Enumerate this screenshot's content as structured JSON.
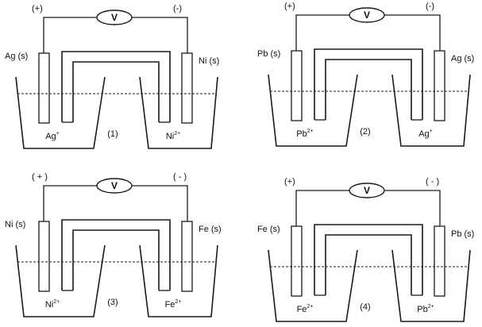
{
  "cells": [
    {
      "number": "(1)",
      "positive": "(+)",
      "negative": "(-)",
      "voltmeter": "V",
      "left_electrode": "Ag (s)",
      "right_electrode": "Ni (s)",
      "left_ion": "Ag",
      "left_ion_charge": "+",
      "right_ion": "Ni",
      "right_ion_charge": "2+"
    },
    {
      "number": "(2)",
      "positive": "(+)",
      "negative": "(-)",
      "voltmeter": "V",
      "left_electrode": "Pb (s)",
      "right_electrode": "Ag (s)",
      "left_ion": "Pb",
      "left_ion_charge": "2+",
      "right_ion": "Ag",
      "right_ion_charge": "+"
    },
    {
      "number": "(3)",
      "positive": "( + )",
      "negative": "( - )",
      "voltmeter": "V",
      "left_electrode": "Ni (s)",
      "right_electrode": "Fe (s)",
      "left_ion": "Ni",
      "left_ion_charge": "2+",
      "right_ion": "Fe",
      "right_ion_charge": "2+"
    },
    {
      "number": "(4)",
      "positive": "(+)",
      "negative": "( - )",
      "voltmeter": "V",
      "left_electrode": "Fe (s)",
      "right_electrode": "Pb (s)",
      "left_ion": "Fe",
      "left_ion_charge": "2+",
      "right_ion": "Pb",
      "right_ion_charge": "2+"
    }
  ]
}
